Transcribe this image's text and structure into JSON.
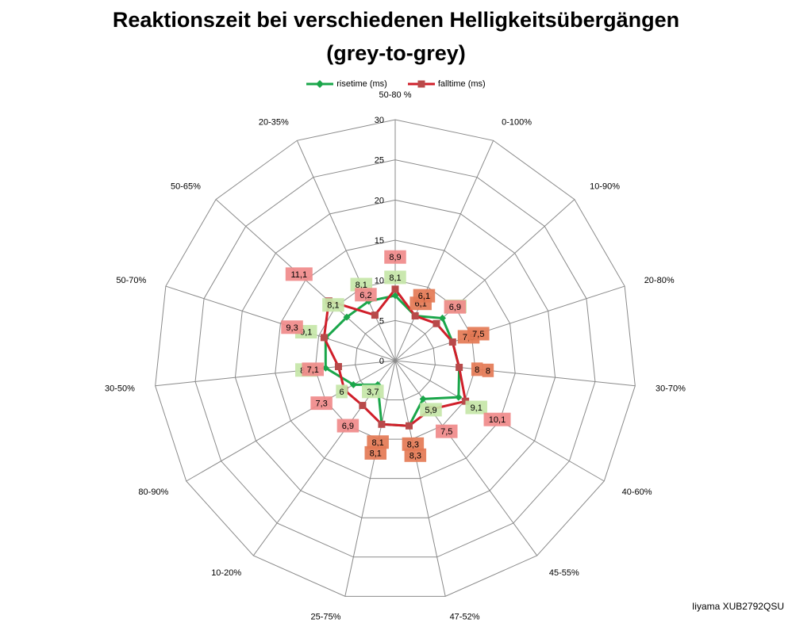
{
  "header": {
    "title_line1": "Reaktionszeit bei verschiedenen Helligkeitsübergängen",
    "title_line2": "(grey-to-grey)"
  },
  "footer": {
    "model": "Iiyama XUB2792QSU"
  },
  "colors": {
    "rise": "#1aa64a",
    "fall": "#d01f2a",
    "rise_label_bg": "#c6e6a8",
    "fall_label_bg": "#f08a8a",
    "overlap_label_bg": "#e47a55",
    "grid": "#8a8a8a"
  },
  "chart_data": {
    "type": "radar",
    "categories": [
      "50-80 %",
      "0-100%",
      "10-90%",
      "20-80%",
      "30-70%",
      "40-60%",
      "45-55%",
      "47-52%",
      "25-75%",
      "10-20%",
      "80-90%",
      "30-50%",
      "50-70%",
      "50-65%",
      "20-35%"
    ],
    "tick_labels": [
      "0",
      "5",
      "10",
      "15",
      "20",
      "25",
      "30"
    ],
    "rlim": [
      0,
      30
    ],
    "legend_position": "top",
    "series": [
      {
        "name": "risetime (ms)",
        "marker": "diamond",
        "values": [
          8.1,
          6.1,
          7.9,
          7.5,
          8,
          9.1,
          5.9,
          8.3,
          8.1,
          3.7,
          6,
          8.7,
          9.1,
          8.1,
          8.1
        ],
        "labels": [
          "8,1",
          "6,1",
          "7,9",
          "7,5",
          "8",
          "9,1",
          "5,9",
          "8,3",
          "8,1",
          "3,7",
          "6",
          "8,7",
          "9,1",
          "8,1",
          "8,1"
        ]
      },
      {
        "name": "falltime (ms)",
        "marker": "square",
        "values": [
          8.9,
          6.1,
          6.9,
          7.5,
          8,
          10.1,
          7.5,
          8.3,
          8.1,
          6.9,
          7.3,
          7.1,
          9.3,
          11.1,
          6.2
        ],
        "labels": [
          "8,9",
          "6,1",
          "6,9",
          "7,5",
          "8",
          "10,1",
          "7,5",
          "8,3",
          "8,1",
          "6,9",
          "7,3",
          "7,1",
          "9,3",
          "11,1",
          "6,2"
        ]
      }
    ]
  }
}
